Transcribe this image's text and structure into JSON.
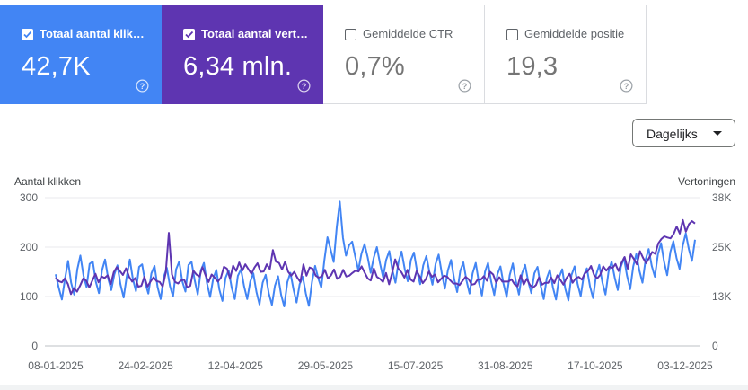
{
  "metrics": [
    {
      "label": "Totaal aantal klikk…",
      "value": "42,7K",
      "checked": true,
      "color": "#4285f4"
    },
    {
      "label": "Totaal aantal vert…",
      "value": "6,34 mln.",
      "checked": true,
      "color": "#5e35b1"
    },
    {
      "label": "Gemiddelde CTR",
      "value": "0,7%",
      "checked": false,
      "color": "#ffffff"
    },
    {
      "label": "Gemiddelde positie",
      "value": "19,3",
      "checked": false,
      "color": "#ffffff"
    }
  ],
  "granularity": {
    "selected": "Dagelijks"
  },
  "chart_data": {
    "type": "line",
    "y_left_label": "Aantal klikken",
    "y_right_label": "Vertoningen",
    "y_left_ticks": [
      "300",
      "200",
      "100",
      "0"
    ],
    "y_right_ticks": [
      "38K",
      "25K",
      "13K",
      "0"
    ],
    "y_left_range": [
      0,
      300
    ],
    "y_right_range": [
      0,
      38000
    ],
    "x_ticks": [
      "08-01-2025",
      "24-02-2025",
      "12-04-2025",
      "29-05-2025",
      "15-07-2025",
      "31-08-2025",
      "17-10-2025",
      "03-12-2025"
    ],
    "grid": true,
    "series": [
      {
        "name": "Totaal aantal klikken",
        "axis": "left",
        "color": "#4285f4",
        "values": [
          145,
          118,
          94,
          135,
          172,
          128,
          104,
          155,
          183,
          142,
          119,
          166,
          171,
          130,
          107,
          153,
          175,
          136,
          113,
          145,
          163,
          124,
          98,
          140,
          175,
          135,
          111,
          160,
          165,
          128,
          106,
          147,
          162,
          119,
          95,
          140,
          158,
          121,
          100,
          155,
          171,
          131,
          110,
          164,
          170,
          133,
          104,
          153,
          168,
          127,
          99,
          136,
          154,
          114,
          91,
          138,
          153,
          117,
          95,
          142,
          155,
          121,
          95,
          130,
          147,
          109,
          84,
          128,
          144,
          107,
          83,
          122,
          141,
          103,
          80,
          129,
          148,
          114,
          88,
          125,
          140,
          106,
          81,
          130,
          162,
          137,
          118,
          173,
          220,
          196,
          170,
          240,
          292,
          219,
          183,
          204,
          211,
          181,
          153,
          187,
          206,
          180,
          148,
          179,
          200,
          167,
          139,
          174,
          192,
          154,
          128,
          170,
          191,
          156,
          131,
          174,
          189,
          152,
          125,
          163,
          182,
          150,
          124,
          166,
          185,
          147,
          116,
          153,
          174,
          136,
          109,
          152,
          169,
          132,
          106,
          147,
          168,
          129,
          102,
          150,
          168,
          130,
          103,
          145,
          161,
          126,
          99,
          143,
          167,
          131,
          104,
          147,
          164,
          130,
          107,
          147,
          160,
          123,
          95,
          137,
          154,
          118,
          94,
          139,
          155,
          116,
          92,
          143,
          161,
          125,
          101,
          143,
          157,
          120,
          97,
          144,
          164,
          129,
          104,
          150,
          171,
          138,
          113,
          160,
          178,
          142,
          115,
          161,
          186,
          152,
          128,
          175,
          196,
          162,
          140,
          186,
          208,
          170,
          143,
          190,
          212,
          178,
          156,
          202,
          228,
          196,
          172,
          215
        ]
      },
      {
        "name": "Totaal aantal vertoningen",
        "axis": "right",
        "color": "#5e35b1",
        "values": [
          17500,
          16600,
          16300,
          17300,
          15900,
          13300,
          14800,
          13900,
          15500,
          17300,
          16700,
          15000,
          16800,
          18500,
          16300,
          17800,
          17400,
          18100,
          15800,
          18900,
          20200,
          19200,
          18200,
          19900,
          17700,
          16500,
          17400,
          15200,
          15400,
          17700,
          15200,
          16500,
          17600,
          16600,
          16400,
          15200,
          18800,
          29000,
          18300,
          16400,
          16000,
          16800,
          17000,
          15000,
          15400,
          19300,
          18300,
          17800,
          20200,
          18100,
          16400,
          18300,
          17500,
          16500,
          17500,
          20300,
          19800,
          17200,
          20600,
          19200,
          21400,
          19300,
          20900,
          19700,
          18500,
          20100,
          21200,
          19000,
          19100,
          20900,
          19700,
          24600,
          21600,
          21300,
          19600,
          21600,
          19000,
          18000,
          19000,
          17500,
          16400,
          20900,
          18000,
          20100,
          19800,
          18000,
          17500,
          17800,
          19500,
          17300,
          18100,
          19600,
          17200,
          17700,
          19500,
          17800,
          18000,
          18700,
          19300,
          19100,
          20400,
          18800,
          17300,
          16800,
          19900,
          17700,
          17200,
          16400,
          18700,
          15800,
          18700,
          22200,
          19800,
          18900,
          17500,
          19500,
          17000,
          16500,
          19200,
          17800,
          16100,
          17100,
          19100,
          17700,
          18300,
          16300,
          17200,
          18000,
          17700,
          16800,
          16000,
          16000,
          15600,
          16700,
          17700,
          17100,
          15700,
          15900,
          17100,
          17000,
          17900,
          16700,
          19000,
          18300,
          16200,
          17600,
          16500,
          16500,
          16500,
          17100,
          15800,
          15300,
          18100,
          15700,
          17200,
          15700,
          14900,
          15600,
          17600,
          15700,
          16200,
          16200,
          17500,
          16100,
          18100,
          16900,
          15700,
          17400,
          18500,
          16200,
          17300,
          17700,
          17000,
          18600,
          19200,
          20500,
          18200,
          17300,
          18200,
          20400,
          19300,
          20300,
          19900,
          21000,
          19200,
          21300,
          22800,
          19800,
          23500,
          22300,
          20900,
          24300,
          22600,
          21200,
          22600,
          24100,
          23600,
          26300,
          27400,
          28100,
          27800,
          27600,
          28700,
          30600,
          28800,
          32300,
          29300,
          31200,
          32000,
          31400
        ]
      }
    ]
  }
}
